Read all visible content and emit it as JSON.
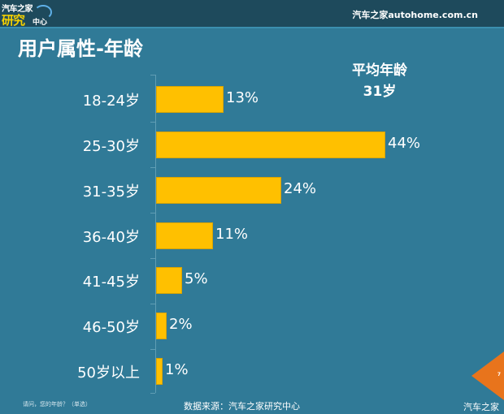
{
  "header": {
    "logo_line1": "汽车之家",
    "logo_line2": "研究",
    "logo_line3": "中心",
    "site": "汽车之家autohome.com.cn"
  },
  "title": "用户属性-年龄",
  "average": {
    "label": "平均年龄",
    "value": "31岁"
  },
  "footer": {
    "question": "请问，您的年龄？（单选）",
    "source": "数据来源：汽车之家研究中心",
    "brand": "汽车之家",
    "page_number": "7"
  },
  "colors": {
    "background": "#307a97",
    "bar": "#ffc000",
    "header": "#1e4a5c",
    "page_marker": "#e8741c"
  },
  "chart_data": {
    "type": "bar",
    "orientation": "horizontal",
    "title": "用户属性-年龄",
    "categories": [
      "18-24岁",
      "25-30岁",
      "31-35岁",
      "36-40岁",
      "41-45岁",
      "46-50岁",
      "50岁以上"
    ],
    "values": [
      13,
      44,
      24,
      11,
      5,
      2,
      1
    ],
    "value_labels": [
      "13%",
      "44%",
      "24%",
      "11%",
      "5%",
      "2%",
      "1%"
    ],
    "unit": "%",
    "xlabel": "",
    "ylabel": "",
    "grid": false,
    "legend": null,
    "annotations": [
      "平均年龄 31岁"
    ]
  }
}
